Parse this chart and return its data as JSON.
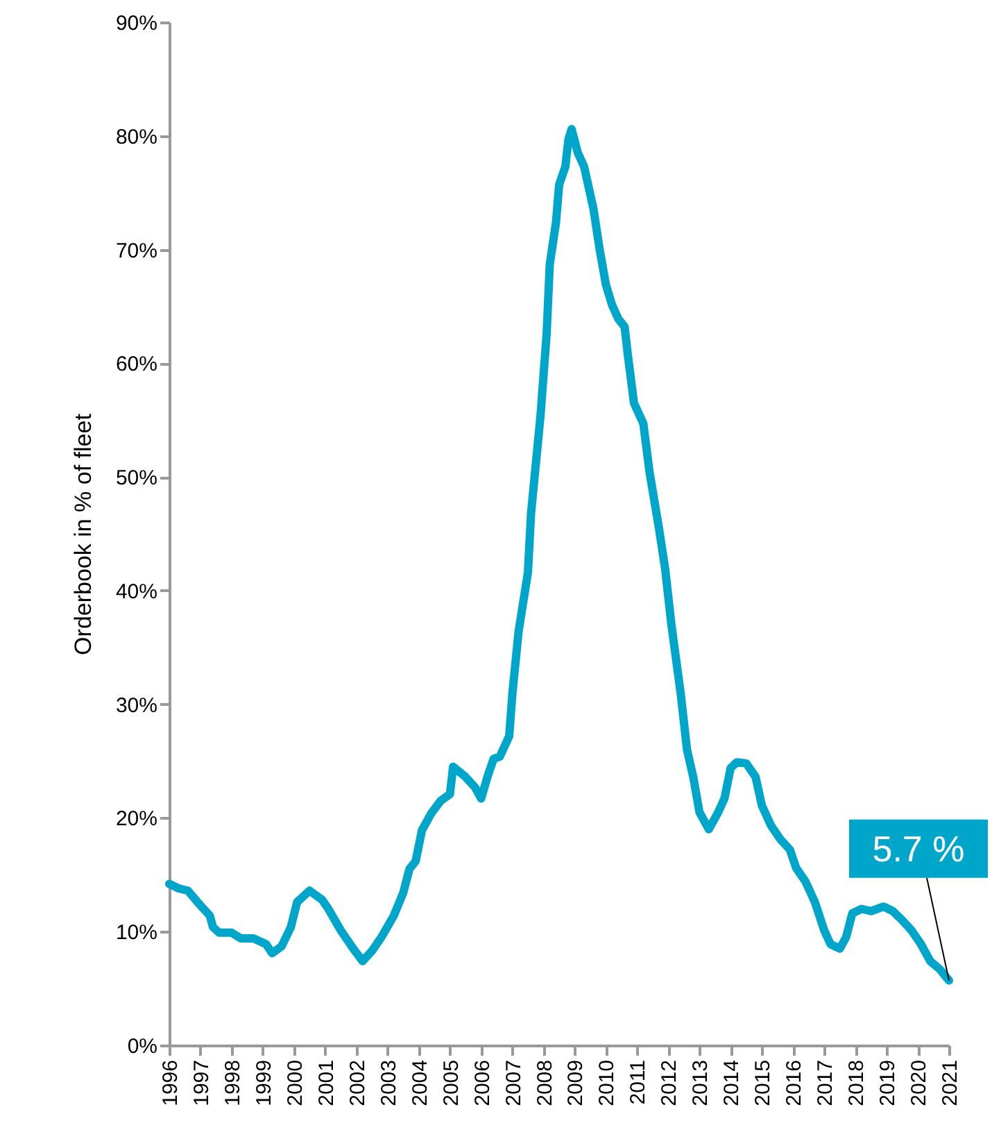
{
  "chart_data": {
    "type": "line",
    "ylabel": "Orderbook in % of fleet",
    "x": [
      1996.0,
      1996.3,
      1996.6,
      1997.0,
      1997.3,
      1997.4,
      1997.6,
      1998.0,
      1998.3,
      1998.7,
      1999.1,
      1999.3,
      1999.6,
      1999.9,
      2000.1,
      2000.5,
      2000.9,
      2001.1,
      2001.5,
      2001.9,
      2002.2,
      2002.5,
      2002.8,
      2003.2,
      2003.5,
      2003.7,
      2003.9,
      2004.1,
      2004.4,
      2004.7,
      2005.0,
      2005.1,
      2005.5,
      2005.8,
      2006.0,
      2006.2,
      2006.4,
      2006.6,
      2006.9,
      2007.0,
      2007.2,
      2007.5,
      2007.6,
      2007.9,
      2008.1,
      2008.2,
      2008.4,
      2008.5,
      2008.7,
      2008.8,
      2008.9,
      2009.1,
      2009.3,
      2009.6,
      2009.8,
      2010.0,
      2010.2,
      2010.4,
      2010.6,
      2010.7,
      2010.9,
      2011.2,
      2011.4,
      2011.7,
      2011.9,
      2012.1,
      2012.4,
      2012.6,
      2012.8,
      2013.0,
      2013.3,
      2013.6,
      2013.8,
      2014.0,
      2014.2,
      2014.5,
      2014.8,
      2015.0,
      2015.3,
      2015.6,
      2015.9,
      2016.1,
      2016.4,
      2016.7,
      2017.0,
      2017.2,
      2017.5,
      2017.7,
      2017.9,
      2018.2,
      2018.5,
      2018.9,
      2019.2,
      2019.5,
      2019.8,
      2020.1,
      2020.4,
      2020.7,
      2021.0
    ],
    "series": [
      {
        "color": "#00a6c9",
        "values": [
          14.2,
          13.8,
          13.6,
          12.3,
          11.4,
          10.4,
          9.9,
          9.9,
          9.4,
          9.4,
          8.9,
          8.1,
          8.7,
          10.4,
          12.6,
          13.6,
          12.8,
          12.0,
          10.1,
          8.5,
          7.4,
          8.3,
          9.5,
          11.4,
          13.4,
          15.5,
          16.2,
          18.9,
          20.4,
          21.5,
          22.1,
          24.5,
          23.6,
          22.7,
          21.7,
          23.6,
          25.2,
          25.4,
          27.2,
          30.9,
          36.4,
          41.6,
          46.8,
          55.3,
          62.6,
          68.7,
          72.4,
          75.7,
          77.3,
          79.7,
          80.6,
          78.5,
          77.3,
          73.6,
          70.0,
          66.9,
          65.1,
          63.9,
          63.2,
          60.8,
          56.5,
          54.7,
          50.4,
          45.5,
          41.9,
          37.0,
          30.9,
          26.0,
          23.6,
          20.5,
          19.0,
          20.5,
          21.7,
          24.4,
          24.9,
          24.8,
          23.6,
          21.1,
          19.3,
          18.1,
          17.2,
          15.6,
          14.4,
          12.6,
          10.1,
          8.9,
          8.5,
          9.5,
          11.6,
          12.0,
          11.8,
          12.2,
          11.8,
          11.0,
          10.1,
          8.9,
          7.4,
          6.7,
          5.7
        ]
      }
    ],
    "xlim": [
      1996,
      2021
    ],
    "xticks": [
      1996,
      1997,
      1998,
      1999,
      2000,
      2001,
      2002,
      2003,
      2004,
      2005,
      2006,
      2007,
      2008,
      2009,
      2010,
      2011,
      2012,
      2013,
      2014,
      2015,
      2016,
      2017,
      2018,
      2019,
      2020,
      2021
    ],
    "ylim": [
      0,
      90
    ],
    "yticks": [
      {
        "value": 0,
        "label": "0%"
      },
      {
        "value": 10,
        "label": "10%"
      },
      {
        "value": 20,
        "label": "20%"
      },
      {
        "value": 30,
        "label": "30%"
      },
      {
        "value": 40,
        "label": "40%"
      },
      {
        "value": 50,
        "label": "50%"
      },
      {
        "value": 60,
        "label": "60%"
      },
      {
        "value": 70,
        "label": "70%"
      },
      {
        "value": 80,
        "label": "80%"
      },
      {
        "value": 90,
        "label": "90%"
      }
    ],
    "annotations": [
      {
        "text": "5.7 %",
        "x": 2021,
        "y": 5.7
      }
    ],
    "grid": false,
    "marker": "none",
    "line_style": "solid"
  }
}
